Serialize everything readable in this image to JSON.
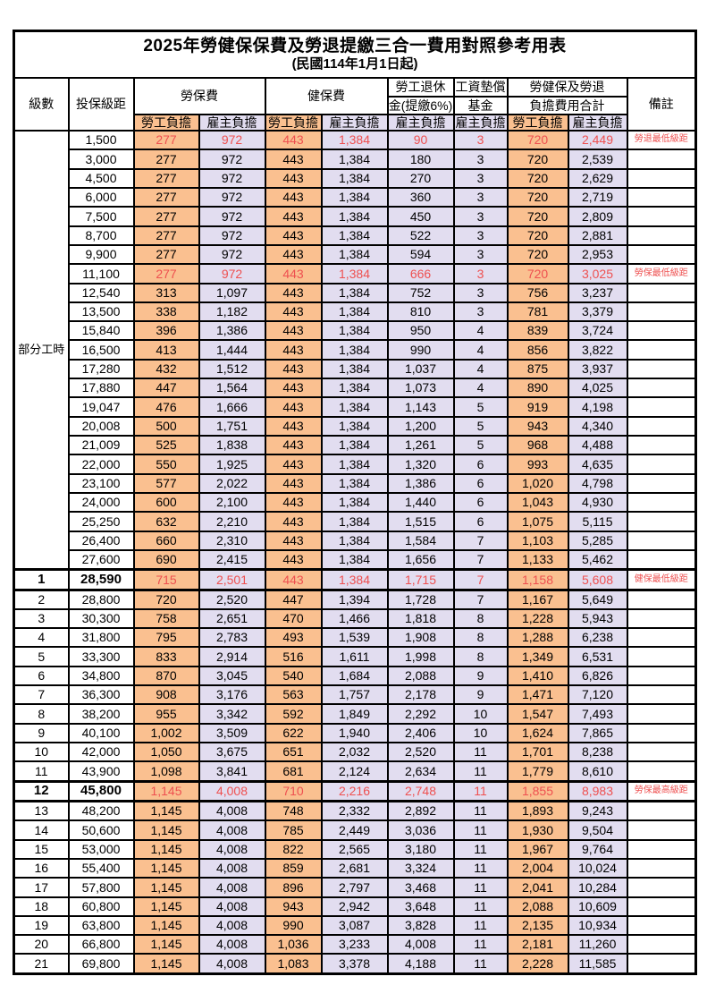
{
  "title": "2025年勞健保保費及勞退提繳三合一費用對照參考用表",
  "subtitle": "(民國114年1月1日起)",
  "header": {
    "level": "級數",
    "bracket": "投保級距",
    "labor_ins": "勞保費",
    "health_ins": "健保費",
    "pension_line1": "勞工退休",
    "pension_line2": "金(提繳6%)",
    "wage_fund_line1": "工資墊償",
    "wage_fund_line2": "基金",
    "total_line1": "勞健保及勞退",
    "total_line2": "負擔費用合計",
    "remark": "備註",
    "employee_label": "勞工負擔",
    "employer_label": "雇主負擔"
  },
  "part_time_label": "部分工時",
  "colors": {
    "employee_bg": "#FAC090",
    "employer_bg": "#E2DDF0",
    "highlight_red": "#EE5050",
    "border": "#000000"
  },
  "rows": [
    {
      "lv": "",
      "bk": "1,500",
      "v": [
        "277",
        "972",
        "443",
        "1,384",
        "90",
        "3",
        "720",
        "2,449"
      ],
      "rm": "勞退最低級距",
      "red": 1
    },
    {
      "bk": "3,000",
      "v": [
        "277",
        "972",
        "443",
        "1,384",
        "180",
        "3",
        "720",
        "2,539"
      ]
    },
    {
      "bk": "4,500",
      "v": [
        "277",
        "972",
        "443",
        "1,384",
        "270",
        "3",
        "720",
        "2,629"
      ]
    },
    {
      "bk": "6,000",
      "v": [
        "277",
        "972",
        "443",
        "1,384",
        "360",
        "3",
        "720",
        "2,719"
      ]
    },
    {
      "bk": "7,500",
      "v": [
        "277",
        "972",
        "443",
        "1,384",
        "450",
        "3",
        "720",
        "2,809"
      ]
    },
    {
      "bk": "8,700",
      "v": [
        "277",
        "972",
        "443",
        "1,384",
        "522",
        "3",
        "720",
        "2,881"
      ]
    },
    {
      "bk": "9,900",
      "v": [
        "277",
        "972",
        "443",
        "1,384",
        "594",
        "3",
        "720",
        "2,953"
      ]
    },
    {
      "bk": "11,100",
      "v": [
        "277",
        "972",
        "443",
        "1,384",
        "666",
        "3",
        "720",
        "3,025"
      ],
      "rm": "勞保最低級距",
      "red": 1
    },
    {
      "bk": "12,540",
      "v": [
        "313",
        "1,097",
        "443",
        "1,384",
        "752",
        "3",
        "756",
        "3,237"
      ]
    },
    {
      "bk": "13,500",
      "v": [
        "338",
        "1,182",
        "443",
        "1,384",
        "810",
        "3",
        "781",
        "3,379"
      ]
    },
    {
      "bk": "15,840",
      "v": [
        "396",
        "1,386",
        "443",
        "1,384",
        "950",
        "4",
        "839",
        "3,724"
      ]
    },
    {
      "bk": "16,500",
      "v": [
        "413",
        "1,444",
        "443",
        "1,384",
        "990",
        "4",
        "856",
        "3,822"
      ]
    },
    {
      "bk": "17,280",
      "v": [
        "432",
        "1,512",
        "443",
        "1,384",
        "1,037",
        "4",
        "875",
        "3,937"
      ]
    },
    {
      "bk": "17,880",
      "v": [
        "447",
        "1,564",
        "443",
        "1,384",
        "1,073",
        "4",
        "890",
        "4,025"
      ]
    },
    {
      "bk": "19,047",
      "v": [
        "476",
        "1,666",
        "443",
        "1,384",
        "1,143",
        "5",
        "919",
        "4,198"
      ]
    },
    {
      "bk": "20,008",
      "v": [
        "500",
        "1,751",
        "443",
        "1,384",
        "1,200",
        "5",
        "943",
        "4,340"
      ]
    },
    {
      "bk": "21,009",
      "v": [
        "525",
        "1,838",
        "443",
        "1,384",
        "1,261",
        "5",
        "968",
        "4,488"
      ]
    },
    {
      "bk": "22,000",
      "v": [
        "550",
        "1,925",
        "443",
        "1,384",
        "1,320",
        "6",
        "993",
        "4,635"
      ]
    },
    {
      "bk": "23,100",
      "v": [
        "577",
        "2,022",
        "443",
        "1,384",
        "1,386",
        "6",
        "1,020",
        "4,798"
      ]
    },
    {
      "bk": "24,000",
      "v": [
        "600",
        "2,100",
        "443",
        "1,384",
        "1,440",
        "6",
        "1,043",
        "4,930"
      ]
    },
    {
      "bk": "25,250",
      "v": [
        "632",
        "2,210",
        "443",
        "1,384",
        "1,515",
        "6",
        "1,075",
        "5,115"
      ]
    },
    {
      "bk": "26,400",
      "v": [
        "660",
        "2,310",
        "443",
        "1,384",
        "1,584",
        "7",
        "1,103",
        "5,285"
      ]
    },
    {
      "bk": "27,600",
      "v": [
        "690",
        "2,415",
        "443",
        "1,384",
        "1,656",
        "7",
        "1,133",
        "5,462"
      ]
    },
    {
      "lv": "1",
      "bk": "28,590",
      "v": [
        "715",
        "2,501",
        "443",
        "1,384",
        "1,715",
        "7",
        "1,158",
        "5,608"
      ],
      "rm": "健保最低級距",
      "red": 1,
      "bold": 1
    },
    {
      "lv": "2",
      "bk": "28,800",
      "v": [
        "720",
        "2,520",
        "447",
        "1,394",
        "1,728",
        "7",
        "1,167",
        "5,649"
      ]
    },
    {
      "lv": "3",
      "bk": "30,300",
      "v": [
        "758",
        "2,651",
        "470",
        "1,466",
        "1,818",
        "8",
        "1,228",
        "5,943"
      ]
    },
    {
      "lv": "4",
      "bk": "31,800",
      "v": [
        "795",
        "2,783",
        "493",
        "1,539",
        "1,908",
        "8",
        "1,288",
        "6,238"
      ]
    },
    {
      "lv": "5",
      "bk": "33,300",
      "v": [
        "833",
        "2,914",
        "516",
        "1,611",
        "1,998",
        "8",
        "1,349",
        "6,531"
      ]
    },
    {
      "lv": "6",
      "bk": "34,800",
      "v": [
        "870",
        "3,045",
        "540",
        "1,684",
        "2,088",
        "9",
        "1,410",
        "6,826"
      ]
    },
    {
      "lv": "7",
      "bk": "36,300",
      "v": [
        "908",
        "3,176",
        "563",
        "1,757",
        "2,178",
        "9",
        "1,471",
        "7,120"
      ]
    },
    {
      "lv": "8",
      "bk": "38,200",
      "v": [
        "955",
        "3,342",
        "592",
        "1,849",
        "2,292",
        "10",
        "1,547",
        "7,493"
      ]
    },
    {
      "lv": "9",
      "bk": "40,100",
      "v": [
        "1,002",
        "3,509",
        "622",
        "1,940",
        "2,406",
        "10",
        "1,624",
        "7,865"
      ]
    },
    {
      "lv": "10",
      "bk": "42,000",
      "v": [
        "1,050",
        "3,675",
        "651",
        "2,032",
        "2,520",
        "11",
        "1,701",
        "8,238"
      ]
    },
    {
      "lv": "11",
      "bk": "43,900",
      "v": [
        "1,098",
        "3,841",
        "681",
        "2,124",
        "2,634",
        "11",
        "1,779",
        "8,610"
      ]
    },
    {
      "lv": "12",
      "bk": "45,800",
      "v": [
        "1,145",
        "4,008",
        "710",
        "2,216",
        "2,748",
        "11",
        "1,855",
        "8,983"
      ],
      "rm": "勞保最高級距",
      "red": 1,
      "bold": 1
    },
    {
      "lv": "13",
      "bk": "48,200",
      "v": [
        "1,145",
        "4,008",
        "748",
        "2,332",
        "2,892",
        "11",
        "1,893",
        "9,243"
      ]
    },
    {
      "lv": "14",
      "bk": "50,600",
      "v": [
        "1,145",
        "4,008",
        "785",
        "2,449",
        "3,036",
        "11",
        "1,930",
        "9,504"
      ]
    },
    {
      "lv": "15",
      "bk": "53,000",
      "v": [
        "1,145",
        "4,008",
        "822",
        "2,565",
        "3,180",
        "11",
        "1,967",
        "9,764"
      ]
    },
    {
      "lv": "16",
      "bk": "55,400",
      "v": [
        "1,145",
        "4,008",
        "859",
        "2,681",
        "3,324",
        "11",
        "2,004",
        "10,024"
      ]
    },
    {
      "lv": "17",
      "bk": "57,800",
      "v": [
        "1,145",
        "4,008",
        "896",
        "2,797",
        "3,468",
        "11",
        "2,041",
        "10,284"
      ]
    },
    {
      "lv": "18",
      "bk": "60,800",
      "v": [
        "1,145",
        "4,008",
        "943",
        "2,942",
        "3,648",
        "11",
        "2,088",
        "10,609"
      ]
    },
    {
      "lv": "19",
      "bk": "63,800",
      "v": [
        "1,145",
        "4,008",
        "990",
        "3,087",
        "3,828",
        "11",
        "2,135",
        "10,934"
      ]
    },
    {
      "lv": "20",
      "bk": "66,800",
      "v": [
        "1,145",
        "4,008",
        "1,036",
        "3,233",
        "4,008",
        "11",
        "2,181",
        "11,260"
      ]
    },
    {
      "lv": "21",
      "bk": "69,800",
      "v": [
        "1,145",
        "4,008",
        "1,083",
        "3,378",
        "4,188",
        "11",
        "2,228",
        "11,585"
      ]
    }
  ]
}
